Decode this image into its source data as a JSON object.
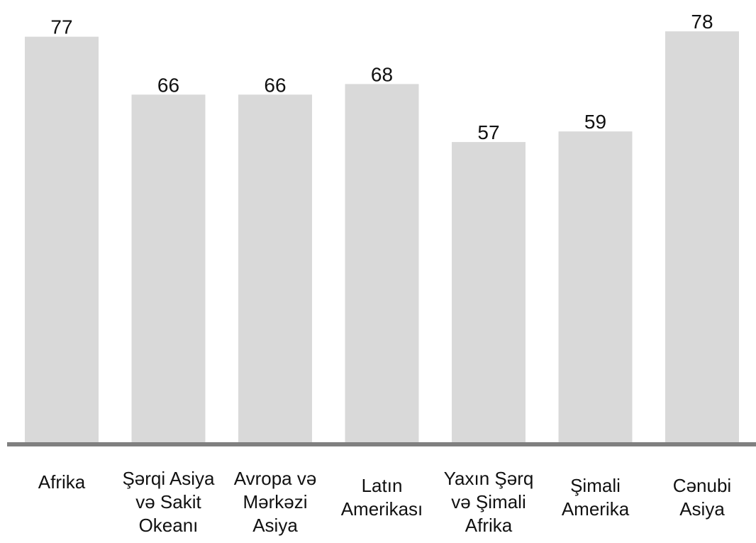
{
  "chart_data": {
    "type": "bar",
    "title": "",
    "xlabel": "",
    "ylabel": "",
    "categories": [
      [
        "Afrika"
      ],
      [
        "Şərqi Asiya",
        "və Sakit",
        "Okeanı"
      ],
      [
        "Avropa və",
        "Mərkəzi",
        "Asiya"
      ],
      [
        "Latın",
        "Amerikası"
      ],
      [
        "Yaxın Şərq",
        "və Şimali",
        "Afrika"
      ],
      [
        "Şimali",
        "Amerika"
      ],
      [
        "Cənubi",
        "Asiya"
      ]
    ],
    "values": [
      77,
      66,
      66,
      68,
      57,
      59,
      78
    ],
    "value_labels": [
      "77",
      "66",
      "66",
      "68",
      "57",
      "59",
      "78"
    ],
    "ylim": [
      0,
      80
    ],
    "grid": false,
    "legend": "none",
    "bar_color": "#d9d9d9",
    "axis_color": "#808080"
  }
}
